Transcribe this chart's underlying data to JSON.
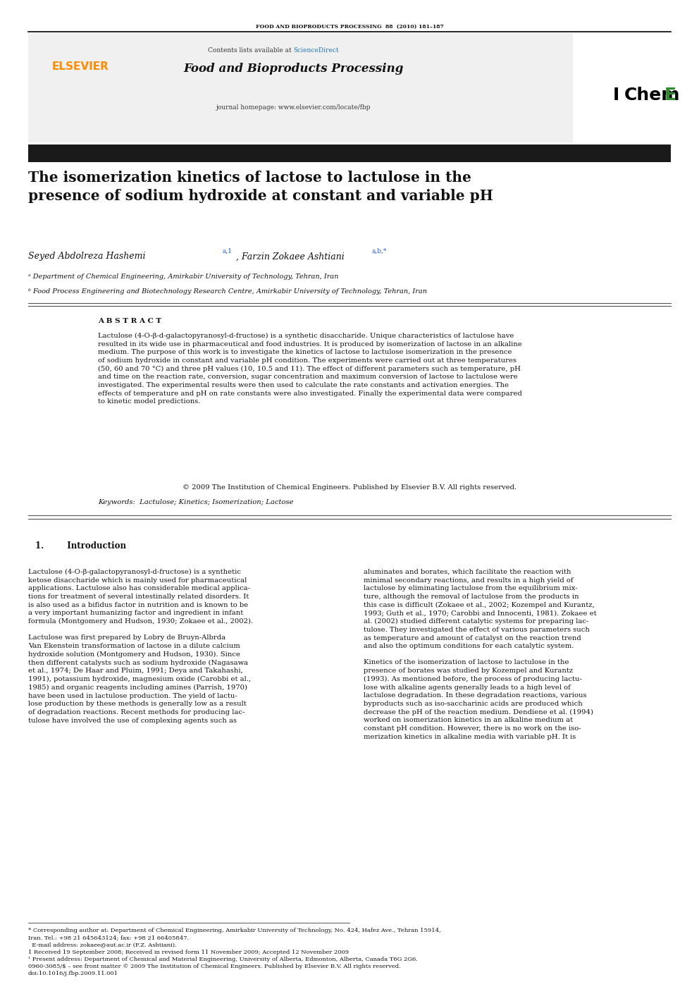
{
  "page_width": 9.92,
  "page_height": 14.03,
  "background_color": "#ffffff",
  "top_border_color": "#000000",
  "header_bg_color": "#f0f0f0",
  "header_journal_name": "Food and Bioproducts Processing",
  "header_contents_text": "Contents lists available at ",
  "header_sciencedirect": "ScienceDirect",
  "sciencedirect_color": "#2171b5",
  "header_journal_url": "journal homepage: www.elsevier.com/locate/fbp",
  "journal_citation": "FOOD AND BIOPRODUCTS PROCESSING  88  (2010) 181–187",
  "iChemE_E_color": "#2e8b2e",
  "elsevier_color": "#ff8c00",
  "title_bar_color": "#1a1a1a",
  "article_title": "The isomerization kinetics of lactose to lactulose in the\npresence of sodium hydroxide at constant and variable pH",
  "authors": "Seyed Abdolreza Hashemi",
  "authors_superscript": "a,1",
  "authors2": ", Farzin Zokaee Ashtiani",
  "authors2_superscript": "a,b,*",
  "affiliation_a": "ᵃ Department of Chemical Engineering, Amirkabir University of Technology, Tehran, Iran",
  "affiliation_b": "ᵇ Food Process Engineering and Biotechnology Research Centre, Amirkabir University of Technology, Tehran, Iran",
  "abstract_title": "A B S T R A C T",
  "abstract_text": "Lactulose (4-O-β-d-galactopyranosyl-d-fructose) is a synthetic disaccharide. Unique characteristics of lactulose have\nresulted in its wide use in pharmaceutical and food industries. It is produced by isomerization of lactose in an alkaline\nmedium. The purpose of this work is to investigate the kinetics of lactose to lactulose isomerization in the presence\nof sodium hydroxide in constant and variable pH condition. The experiments were carried out at three temperatures\n(50, 60 and 70 °C) and three pH values (10, 10.5 and 11). The effect of different parameters such as temperature, pH\nand time on the reaction rate, conversion, sugar concentration and maximum conversion of lactose to lactulose were\ninvestigated. The experimental results were then used to calculate the rate constants and activation energies. The\neffects of temperature and pH on rate constants were also investigated. Finally the experimental data were compared\nto kinetic model predictions.",
  "copyright_text": "© 2009 The Institution of Chemical Engineers. Published by Elsevier B.V. All rights reserved.",
  "keywords_text": "Keywords:  Lactulose; Kinetics; Isomerization; Lactose",
  "section1_title": "1.        Introduction",
  "section1_col1": "Lactulose (4-O-β-galactopyranosyl-d-fructose) is a synthetic\nketose disaccharide which is mainly used for pharmaceutical\napplications. Lactulose also has considerable medical applica-\ntions for treatment of several intestinally related disorders. It\nis also used as a bifidus factor in nutrition and is known to be\na very important humanizing factor and ingredient in infant\nformula (Montgomery and Hudson, 1930; Zokaee et al., 2002).\n\nLactulose was first prepared by Lobry de Bruyn-Albrda\nVan Ekenstein transformation of lactose in a dilute calcium\nhydroxide solution (Montgomery and Hudson, 1930). Since\nthen different catalysts such as sodium hydroxide (Nagasawa\net al., 1974; De Haar and Pluim, 1991; Deya and Takahashi,\n1991), potassium hydroxide, magnesium oxide (Carobbi et al.,\n1985) and organic reagents including amines (Parrish, 1970)\nhave been used in lactulose production. The yield of lactu-\nlose production by these methods is generally low as a result\nof degradation reactions. Recent methods for producing lac-\ntulose have involved the use of complexing agents such as",
  "section1_col2": "aluminates and borates, which facilitate the reaction with\nminimal secondary reactions, and results in a high yield of\nlactulose by eliminating lactulose from the equilibrium mix-\nture, although the removal of lactulose from the products in\nthis case is difficult (Zokaee et al., 2002; Kozempel and Kurantz,\n1993; Guth et al., 1970; Carobbi and Innocenti, 1981). Zokaee et\nal. (2002) studied different catalytic systems for preparing lac-\ntulose. They investigated the effect of various parameters such\nas temperature and amount of catalyst on the reaction trend\nand also the optimum conditions for each catalytic system.\n\nKinetics of the isomerization of lactose to lactulose in the\npresence of borates was studied by Kozempel and Kurantz\n(1993). As mentioned before, the process of producing lactu-\nlose with alkaline agents generally leads to a high level of\nlactulose degradation. In these degradation reactions, various\nbyproducts such as iso-saccharinic acids are produced which\ndecrease the pH of the reaction medium. Dendiene et al. (1994)\nworked on isomerization kinetics in an alkaline medium at\nconstant pH condition. However, there is no work on the iso-\nmerization kinetics in alkaline media with variable pH. It is",
  "ref_links_color": "#1a56db",
  "footnote_text": "* Corresponding author at: Department of Chemical Engineering, Amirkabir University of Technology, No. 424, Hafez Ave., Tehran 15914,\nIran. Tel.: +98 21 645643124; fax: +98 21 66405847.\n  E-mail address: zokaee@aut.ac.ir (F.Z. Ashtiani).\n1 Received 19 September 2008; Received in revised form 11 November 2009; Accepted 12 November 2009\n¹ Present address: Department of Chemical and Material Engineering, University of Alberta, Edmonton, Alberta, Canada T6G 2G6.\n0960-3085/$ – see front matter © 2009 The Institution of Chemical Engineers. Published by Elsevier B.V. All rights reserved.\ndoi:10.1016/j.fbp.2009.11.001"
}
